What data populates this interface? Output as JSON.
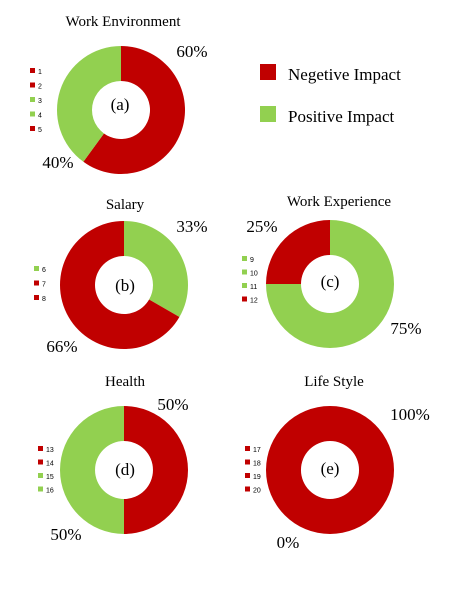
{
  "colors": {
    "negative": "#c00000",
    "positive": "#92d050"
  },
  "legend": [
    {
      "label": "Negetive Impact",
      "color": "#c00000"
    },
    {
      "label": "Positive Impact",
      "color": "#92d050"
    }
  ],
  "chart_data": [
    {
      "type": "pie",
      "title": "Work Environment",
      "panel": "(a)",
      "categories": [
        "1",
        "2",
        "3",
        "4",
        "5"
      ],
      "category_colors": [
        "#c00000",
        "#c00000",
        "#92d050",
        "#92d050",
        "#c00000"
      ],
      "series": [
        {
          "values": [
            60,
            40
          ]
        }
      ],
      "labels": [
        "60%",
        "40%"
      ],
      "slice_colors": [
        "#c00000",
        "#92d050"
      ]
    },
    {
      "type": "pie",
      "title": "Salary",
      "panel": "(b)",
      "categories": [
        "6",
        "7",
        "8"
      ],
      "category_colors": [
        "#92d050",
        "#c00000",
        "#c00000"
      ],
      "series": [
        {
          "values": [
            33,
            66
          ]
        }
      ],
      "labels": [
        "33%",
        "66%"
      ],
      "slice_colors": [
        "#92d050",
        "#c00000"
      ]
    },
    {
      "type": "pie",
      "title": "Work Experience",
      "panel": "(c)",
      "categories": [
        "9",
        "10",
        "11",
        "12"
      ],
      "category_colors": [
        "#92d050",
        "#92d050",
        "#92d050",
        "#c00000"
      ],
      "series": [
        {
          "values": [
            75,
            25
          ]
        }
      ],
      "labels": [
        "75%",
        "25%"
      ],
      "slice_colors": [
        "#92d050",
        "#c00000"
      ]
    },
    {
      "type": "pie",
      "title": "Health",
      "panel": "(d)",
      "categories": [
        "13",
        "14",
        "15",
        "16"
      ],
      "category_colors": [
        "#c00000",
        "#c00000",
        "#92d050",
        "#92d050"
      ],
      "series": [
        {
          "values": [
            50,
            50
          ]
        }
      ],
      "labels": [
        "50%",
        "50%"
      ],
      "slice_colors": [
        "#c00000",
        "#92d050"
      ]
    },
    {
      "type": "pie",
      "title": "Life Style",
      "panel": "(e)",
      "categories": [
        "17",
        "18",
        "19",
        "20"
      ],
      "category_colors": [
        "#c00000",
        "#c00000",
        "#c00000",
        "#c00000"
      ],
      "series": [
        {
          "values": [
            100,
            0
          ]
        }
      ],
      "labels": [
        "100%",
        "0%"
      ],
      "slice_colors": [
        "#c00000",
        "#92d050"
      ]
    }
  ]
}
